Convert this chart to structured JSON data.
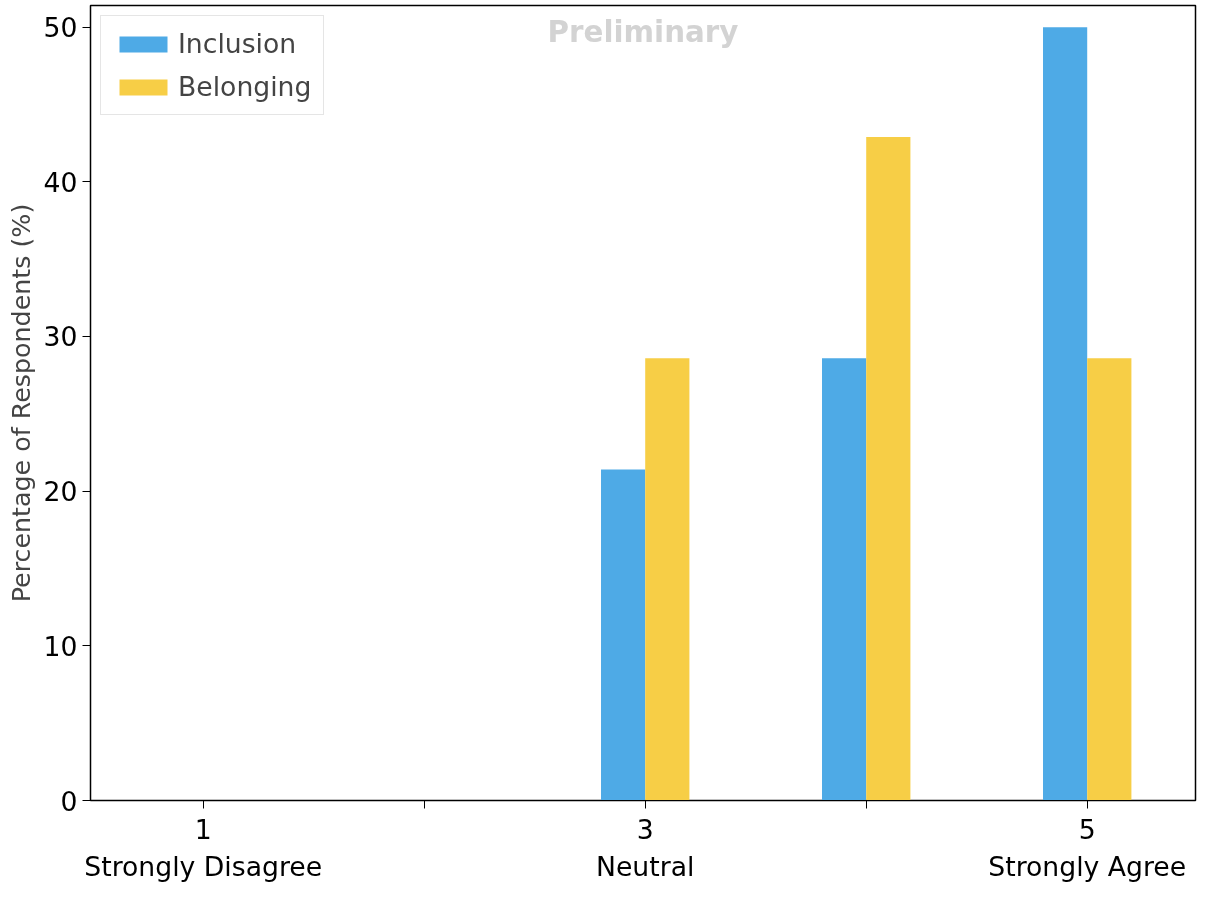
{
  "chart_data": {
    "type": "bar",
    "ylabel": "Percentage of Respondents (%)",
    "categories": [
      "1\nStrongly Disagree",
      null,
      "3\nNeutral",
      null,
      "5\nStrongly Agree"
    ],
    "series": [
      {
        "name": "Inclusion",
        "color": "#4eaae6",
        "values": [
          0,
          0,
          21.4,
          28.6,
          50.0
        ]
      },
      {
        "name": "Belonging",
        "color": "#f7ce46",
        "values": [
          0,
          0,
          28.6,
          42.9,
          28.6
        ]
      }
    ],
    "ylim": [
      0,
      51.4
    ],
    "yticks": [
      0,
      10,
      20,
      30,
      40,
      50
    ],
    "grid": false,
    "legend": "top left",
    "annotations": [
      "Preliminary"
    ]
  }
}
